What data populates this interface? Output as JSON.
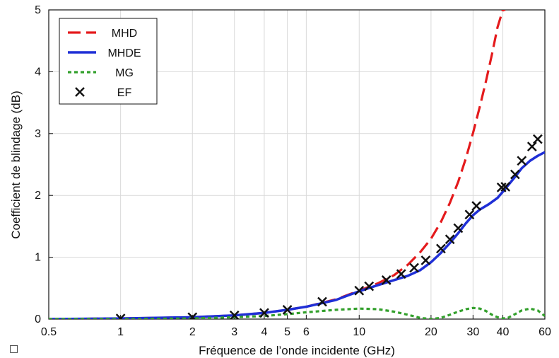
{
  "chart_data": {
    "type": "line",
    "title": "",
    "xlabel": "Fréquence de l’onde incidente (GHz)",
    "ylabel": "Coefficient de blindage (dB)",
    "xscale": "log",
    "xlim": [
      0.5,
      60
    ],
    "ylim": [
      0,
      5
    ],
    "x_ticks": [
      0.5,
      1,
      2,
      3,
      4,
      5,
      6,
      10,
      20,
      30,
      40,
      60
    ],
    "x_tick_labels": [
      "0.5",
      "1",
      "2",
      "3",
      "4",
      "5",
      "6",
      "10",
      "20",
      "30",
      "40",
      "60"
    ],
    "y_ticks": [
      0,
      1,
      2,
      3,
      4,
      5
    ],
    "y_tick_labels": [
      "0",
      "1",
      "2",
      "3",
      "4",
      "5"
    ],
    "grid": true,
    "legend_position": "top-left",
    "series": [
      {
        "name": "MHD",
        "style": "dashed",
        "color": "#e41a1c",
        "x": [
          0.5,
          1,
          2,
          3,
          4,
          5,
          6,
          8,
          10,
          12,
          14,
          16,
          18,
          20,
          22,
          24,
          26,
          28,
          30,
          32,
          34,
          36,
          38,
          40,
          41
        ],
        "y": [
          0.0,
          0.01,
          0.03,
          0.06,
          0.1,
          0.15,
          0.2,
          0.32,
          0.46,
          0.58,
          0.71,
          0.88,
          1.08,
          1.3,
          1.57,
          1.88,
          2.22,
          2.6,
          3.01,
          3.43,
          3.85,
          4.28,
          4.72,
          5.0,
          5.0
        ]
      },
      {
        "name": "MHDE",
        "style": "solid",
        "color": "#1f2fd6",
        "x": [
          0.5,
          1,
          2,
          3,
          4,
          5,
          6,
          8,
          10,
          12,
          14,
          16,
          18,
          20,
          22,
          24,
          26,
          28,
          30,
          32,
          35,
          38,
          40,
          42,
          45,
          48,
          52,
          56,
          60
        ],
        "y": [
          0.0,
          0.01,
          0.03,
          0.06,
          0.1,
          0.15,
          0.2,
          0.31,
          0.45,
          0.55,
          0.63,
          0.7,
          0.79,
          0.92,
          1.07,
          1.23,
          1.39,
          1.55,
          1.68,
          1.77,
          1.86,
          1.96,
          2.06,
          2.16,
          2.3,
          2.44,
          2.56,
          2.64,
          2.7
        ]
      },
      {
        "name": "MG",
        "style": "dotted",
        "color": "#33a02c",
        "x": [
          0.5,
          1,
          2,
          3,
          4,
          5,
          6,
          8,
          10,
          12,
          14,
          16,
          18,
          20,
          22,
          24,
          26,
          28,
          30,
          32,
          34,
          36,
          38,
          40,
          42,
          45,
          48,
          52,
          56,
          60
        ],
        "y": [
          0.0,
          0.0,
          0.01,
          0.03,
          0.05,
          0.08,
          0.11,
          0.15,
          0.17,
          0.16,
          0.12,
          0.07,
          0.02,
          0.0,
          0.02,
          0.07,
          0.12,
          0.16,
          0.18,
          0.17,
          0.13,
          0.07,
          0.03,
          0.01,
          0.02,
          0.08,
          0.14,
          0.17,
          0.14,
          0.05
        ]
      },
      {
        "name": "EF",
        "style": "markers-x",
        "color": "#111111",
        "x": [
          1,
          2,
          3,
          4,
          5,
          7,
          10,
          11,
          13,
          15,
          17,
          19,
          22,
          24,
          26,
          29,
          31,
          39.5,
          41,
          45,
          48,
          53,
          56
        ],
        "y": [
          0.01,
          0.03,
          0.06,
          0.1,
          0.15,
          0.28,
          0.46,
          0.53,
          0.63,
          0.73,
          0.83,
          0.95,
          1.14,
          1.29,
          1.47,
          1.69,
          1.83,
          2.13,
          2.14,
          2.34,
          2.56,
          2.79,
          2.91
        ]
      }
    ]
  },
  "legend_items": [
    {
      "name": "MHD"
    },
    {
      "name": "MHDE"
    },
    {
      "name": "MG"
    },
    {
      "name": "EF"
    }
  ],
  "extra": {
    "corner_glyph": "□"
  }
}
